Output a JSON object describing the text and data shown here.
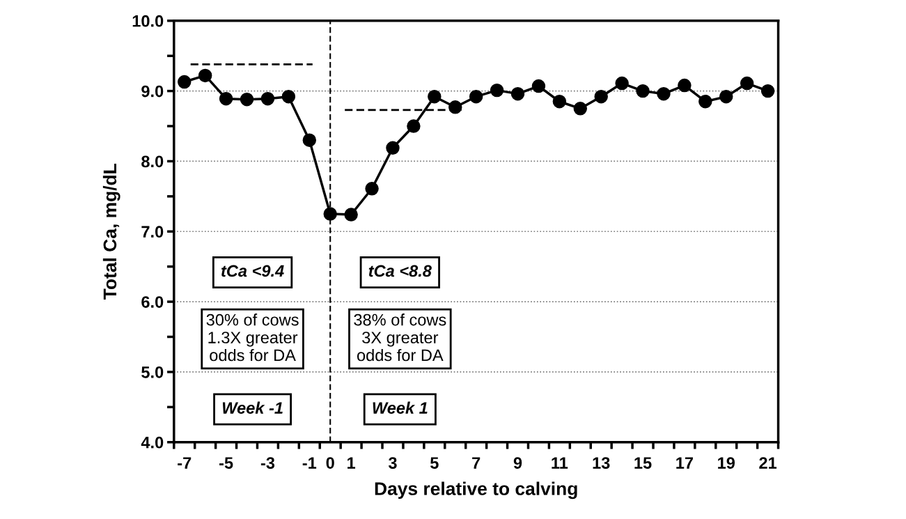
{
  "chart_data": {
    "type": "line",
    "xlabel": "Days relative to calving",
    "ylabel": "Total Ca, mg/dL",
    "x": [
      -7,
      -6,
      -5,
      -4,
      -3,
      -2,
      -1,
      0,
      1,
      2,
      3,
      4,
      5,
      6,
      7,
      8,
      9,
      10,
      11,
      12,
      13,
      14,
      15,
      16,
      17,
      18,
      19,
      20,
      21
    ],
    "series": [
      {
        "color": "#000000",
        "marker": "circle",
        "line_style": "solid",
        "values": [
          9.13,
          9.22,
          8.89,
          8.88,
          8.89,
          8.92,
          8.3,
          7.25,
          7.24,
          7.61,
          8.19,
          8.5,
          8.92,
          8.77,
          8.92,
          9.01,
          8.96,
          9.07,
          8.85,
          8.75,
          8.92,
          9.11,
          9.0,
          8.96,
          9.08,
          8.85,
          8.92,
          9.11,
          9.0
        ]
      },
      {
        "type": "line",
        "color": "#000000",
        "marker": "none",
        "line_style": "dashed",
        "x": [
          -6.7,
          -0.85
        ],
        "values": [
          9.38,
          9.38
        ]
      },
      {
        "type": "line",
        "color": "#000000",
        "marker": "none",
        "line_style": "dashed",
        "x": [
          0.7,
          6.3
        ],
        "values": [
          8.73,
          8.73
        ]
      }
    ],
    "xlim": [
      -7.5,
      21.5
    ],
    "xticks": [
      -7,
      -5,
      -3,
      -1,
      0,
      1,
      3,
      5,
      7,
      9,
      11,
      13,
      15,
      17,
      19,
      21,
      {
        "value": -7.5,
        "label": null
      },
      {
        "value": -6.5,
        "label": null
      },
      {
        "value": -5.5,
        "label": null
      },
      {
        "value": -4.5,
        "label": null
      },
      {
        "value": -3.5,
        "label": null
      },
      {
        "value": -2.5,
        "label": null
      },
      {
        "value": -1.5,
        "label": null
      },
      {
        "value": -0.5,
        "label": null
      },
      {
        "value": 0.5,
        "label": null
      },
      {
        "value": 1.5,
        "label": null
      },
      {
        "value": 2.5,
        "label": null
      },
      {
        "value": 3.5,
        "label": null
      },
      {
        "value": 4.5,
        "label": null
      },
      {
        "value": 5.5,
        "label": null
      },
      {
        "value": 6.5,
        "label": null
      },
      {
        "value": 7.5,
        "label": null
      },
      {
        "value": 8.5,
        "label": null
      },
      {
        "value": 9.5,
        "label": null
      },
      {
        "value": 10.5,
        "label": null
      },
      {
        "value": 11.5,
        "label": null
      },
      {
        "value": 12.5,
        "label": null
      },
      {
        "value": 13.5,
        "label": null
      },
      {
        "value": 14.5,
        "label": null
      },
      {
        "value": 15.5,
        "label": null
      },
      {
        "value": 16.5,
        "label": null
      },
      {
        "value": 17.5,
        "label": null
      },
      {
        "value": 18.5,
        "label": null
      },
      {
        "value": 19.5,
        "label": null
      },
      {
        "value": 20.5,
        "label": null
      },
      {
        "value": 21.5,
        "label": null
      }
    ],
    "ylim": [
      4,
      10
    ],
    "yticks": [
      {
        "value": 4,
        "label": "4.0"
      },
      {
        "value": 5,
        "label": "5.0"
      },
      {
        "value": 6,
        "label": "6.0"
      },
      {
        "value": 7,
        "label": "7.0"
      },
      {
        "value": 8,
        "label": "8.0"
      },
      {
        "value": 9,
        "label": "9.0"
      },
      {
        "value": 10,
        "label": "10.0"
      },
      {
        "value": 4.5,
        "label": null
      },
      {
        "value": 5.5,
        "label": null
      },
      {
        "value": 6.5,
        "label": null
      },
      {
        "value": 7.5,
        "label": null
      },
      {
        "value": 8.5,
        "label": null
      },
      {
        "value": 9.5,
        "label": null
      }
    ],
    "grid": "y",
    "ref_lines": [
      {
        "axis": "x",
        "value": 0,
        "color": "#000000",
        "line_style": "dashed"
      }
    ],
    "annotations": [
      "tCa <9.4",
      "tCa <8.8",
      "30% of cows\n1.3X greater\nodds for DA",
      "38% of cows\n3X greater\nodds for DA",
      "Week -1",
      "Week 1"
    ]
  }
}
